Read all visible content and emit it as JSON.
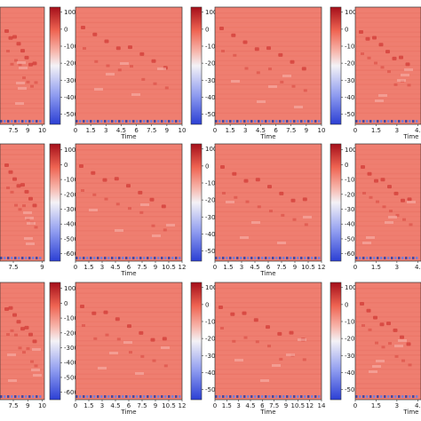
{
  "chart_data": {
    "type": "heatmap",
    "grid": {
      "rows": 3,
      "cols": 3
    },
    "colorscale": {
      "low": "#3a4bd6",
      "mid": "#ffffff",
      "high": "#c8102e"
    },
    "panels": [
      {
        "row": 0,
        "col": 0,
        "x_ticks": [
          "7.5",
          "9",
          "10"
        ],
        "x_label": "",
        "colorbar_ticks": [
          "100",
          "0",
          "-100",
          "-200",
          "-300",
          "-400",
          "-500"
        ],
        "cmin": -560,
        "cmax": 130
      },
      {
        "row": 0,
        "col": 1,
        "x_ticks": [
          "0",
          "1.5",
          "3",
          "4.5",
          "6",
          "7.5",
          "9",
          "10"
        ],
        "x_label": "Time",
        "colorbar_ticks": [
          "100",
          "0",
          "-100",
          "-200",
          "-300",
          "-400",
          "-500"
        ],
        "cmin": -560,
        "cmax": 130
      },
      {
        "row": 0,
        "col": 2,
        "x_ticks": [
          "0",
          "1.5",
          "3",
          "4.5",
          "6",
          "7.5",
          "9",
          "10"
        ],
        "x_label": "Time",
        "colorbar_ticks": [
          "100",
          "0",
          "-100",
          "-200",
          "-300",
          "-400",
          "-500"
        ],
        "cmin": -560,
        "cmax": 130
      },
      {
        "row": 1,
        "col": 0,
        "x_ticks": [
          "7.5",
          "9"
        ],
        "x_label": "",
        "colorbar_ticks": [
          "100",
          "0",
          "-100",
          "-200",
          "-300",
          "-400",
          "-500",
          "-600"
        ],
        "cmin": -650,
        "cmax": 140
      },
      {
        "row": 1,
        "col": 1,
        "x_ticks": [
          "0",
          "1.5",
          "3",
          "4.5",
          "6",
          "7.5",
          "9",
          "10.5",
          "12"
        ],
        "x_label": "Time",
        "colorbar_ticks": [
          "100",
          "0",
          "-100",
          "-200",
          "-300",
          "-400",
          "-500"
        ],
        "cmin": -560,
        "cmax": 130
      },
      {
        "row": 1,
        "col": 2,
        "x_ticks": [
          "0",
          "1.5",
          "3",
          "4.5",
          "6",
          "7.5",
          "9",
          "10.5",
          "12"
        ],
        "x_label": "Time",
        "colorbar_ticks": [
          "100",
          "0",
          "-100",
          "-200",
          "-300",
          "-400",
          "-500",
          "-600"
        ],
        "cmin": -650,
        "cmax": 140
      },
      {
        "row": 2,
        "col": 0,
        "x_ticks": [
          "7.5",
          "9",
          "10"
        ],
        "x_label": "",
        "colorbar_ticks": [
          "100",
          "0",
          "-100",
          "-200",
          "-300",
          "-400",
          "-500",
          "-600"
        ],
        "cmin": -650,
        "cmax": 140
      },
      {
        "row": 2,
        "col": 1,
        "x_ticks": [
          "0",
          "1.5",
          "3",
          "4.5",
          "6",
          "7.5",
          "9",
          "10.5",
          "12"
        ],
        "x_label": "Time",
        "colorbar_ticks": [
          "100",
          "0",
          "-100",
          "-200",
          "-300",
          "-400",
          "-500"
        ],
        "cmin": -560,
        "cmax": 130
      },
      {
        "row": 2,
        "col": 2,
        "x_ticks": [
          "0",
          "1.5",
          "3",
          "4.5",
          "6",
          "7.5",
          "9",
          "10.5",
          "12",
          "14"
        ],
        "x_label": "Time",
        "colorbar_ticks": [
          "100",
          "0",
          "-100",
          "-200",
          "-300",
          "-400",
          "-500"
        ],
        "cmin": -560,
        "cmax": 130
      }
    ],
    "partial_right_panels": [
      {
        "row": 0,
        "x_ticks": [
          "0",
          "1.5",
          "3",
          "4."
        ],
        "x_label": "Time",
        "colorbar_ticks": [
          "100",
          "0",
          "-100",
          "-200",
          "-300",
          "-400",
          "-500"
        ],
        "cmin": -560,
        "cmax": 130
      },
      {
        "row": 1,
        "x_ticks": [
          "0",
          "1.5",
          "3",
          "4."
        ],
        "x_label": "",
        "colorbar_ticks": [
          "100",
          "0",
          "-100",
          "-200",
          "-300",
          "-400",
          "-500",
          "-600"
        ],
        "cmin": -650,
        "cmax": 140
      },
      {
        "row": 2,
        "x_ticks": [
          "0",
          "1.5",
          "3",
          "4."
        ],
        "x_label": "Time",
        "colorbar_ticks": [
          "100",
          "0",
          "-100",
          "-200",
          "-300",
          "-400",
          "-500"
        ],
        "cmin": -560,
        "cmax": 130
      }
    ]
  }
}
